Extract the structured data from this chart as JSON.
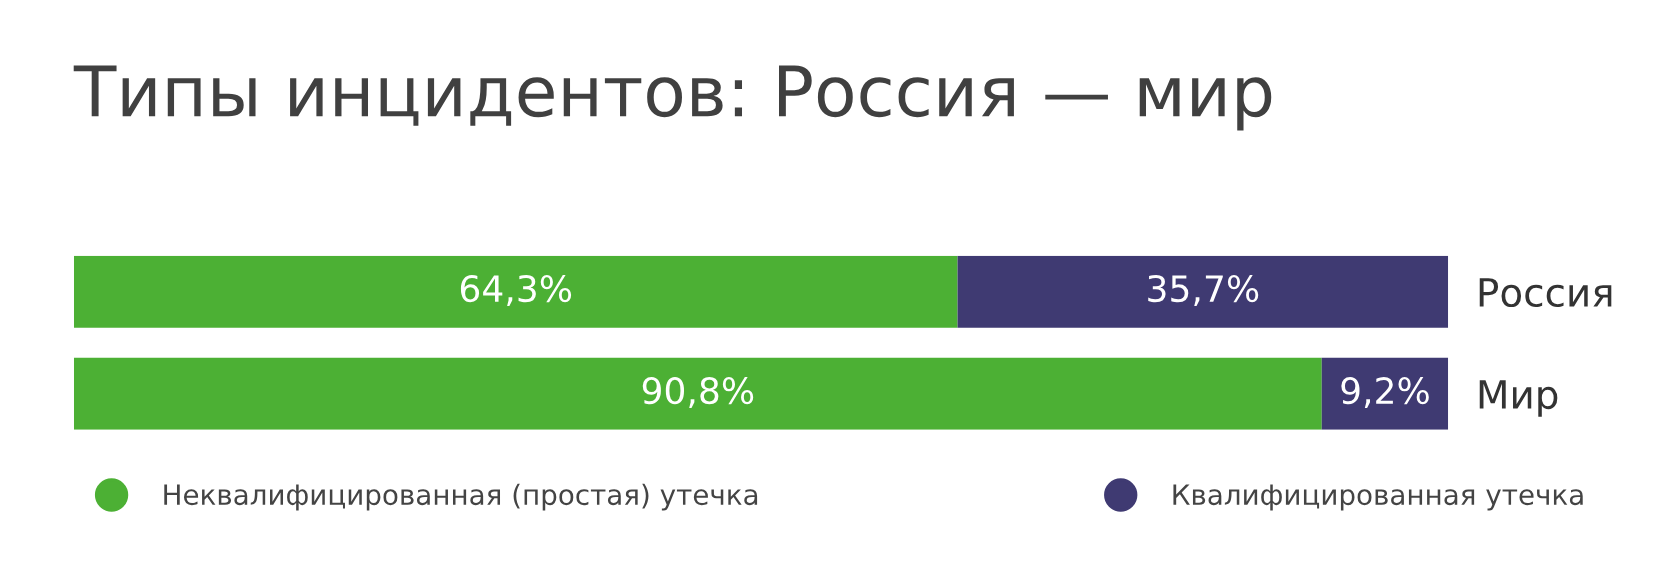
{
  "chart_data": {
    "type": "bar",
    "title": "Типы инцидентов: Россия — мир",
    "orientation": "horizontal",
    "stacked": true,
    "categories": [
      "Россия",
      "Мир"
    ],
    "series": [
      {
        "name": "Неквалифицированная (простая) утечка",
        "color": "#4cb034",
        "values": [
          64.3,
          90.8
        ],
        "value_labels": [
          "64,3%",
          "90,8%"
        ]
      },
      {
        "name": "Квалифицированная утечка",
        "color": "#3f3a72",
        "values": [
          35.7,
          9.2
        ],
        "value_labels": [
          "35,7%",
          "9,2%"
        ]
      }
    ],
    "legend": "bottom",
    "tick_labels": "y",
    "grid": false
  }
}
